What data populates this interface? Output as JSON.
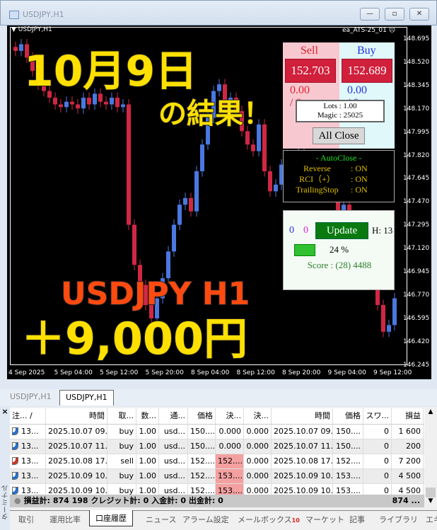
{
  "window": {
    "title": "USDJPY,H1",
    "minimize": "—",
    "restore": "▫",
    "close": "✕"
  },
  "chart": {
    "symbol_label": "USDJPY,H1",
    "ea_label": "ea_ATS-25_01",
    "ea_status_icon": "sad-face-icon",
    "y_ticks": [
      "148.695",
      "148.520",
      "148.345",
      "148.170",
      "147.995",
      "147.820",
      "147.645",
      "147.470",
      "147.295",
      "147.120",
      "146.945",
      "146.770",
      "146.595",
      "146.420",
      "146.245"
    ],
    "x_ticks": [
      "4 Sep 2025",
      "5 Sep 04:00",
      "5 Sep 12:00",
      "5 Sep 20:00",
      "8 Sep 04:00",
      "8 Sep 12:00",
      "8 Sep 20:00",
      "9 Sep 04:00",
      "9 Sep 12:00"
    ],
    "y_range": [
      146.245,
      148.695
    ],
    "colors": {
      "up": "#4a78e0",
      "down": "#d02844"
    },
    "closes": [
      148.6,
      148.65,
      148.55,
      148.45,
      148.35,
      148.3,
      148.25,
      148.2,
      148.18,
      148.22,
      148.2,
      148.17,
      148.25,
      148.2,
      148.28,
      148.22,
      148.2,
      148.25,
      148.18,
      148.2,
      147.3,
      147.0,
      146.85,
      146.7,
      146.6,
      146.75,
      146.9,
      147.1,
      147.3,
      147.45,
      147.5,
      147.4,
      147.7,
      147.9,
      148.1,
      148.3,
      148.35,
      148.2,
      148.25,
      148.15,
      148.0,
      147.9,
      147.85,
      148.05,
      147.7,
      147.55,
      147.6,
      147.75,
      147.8,
      147.72,
      147.85,
      147.8,
      147.7,
      147.75,
      147.65,
      147.7,
      147.55,
      147.4,
      147.45,
      147.3,
      147.2,
      147.1,
      147.0,
      146.9,
      146.7,
      146.5,
      146.55,
      146.75
    ]
  },
  "overlay": {
    "date": "10月9日",
    "result": "の結果！",
    "pair": "USDJPY  H1",
    "profit": "＋9,000円"
  },
  "panel": {
    "sell_label": "Sell",
    "buy_label": "Buy",
    "sell_price": "152.703",
    "buy_price": "152.689",
    "sell_pos": "0.00 / 0",
    "buy_pos": "0.00 / 0",
    "lots": "Lots   : 1.00",
    "magic": "Magic : 25025",
    "all_close": "All Close",
    "autoclose_title": "- AutoClose -",
    "autoclose": [
      {
        "name": "Reverse",
        "value": ": ON"
      },
      {
        "name": "RCI（+）",
        "value": ": ON"
      },
      {
        "name": "TrailingStop",
        "value": ": ON"
      }
    ],
    "count_blue": "0",
    "count_magenta": "0",
    "update": "Update",
    "h_label": "H: 13",
    "progress_pct": 24,
    "progress_text": "24 %",
    "score": "Score : (28) 4488"
  },
  "chart_tabs": [
    "USDJPY,H1",
    "USDJPY,H1"
  ],
  "terminal": {
    "side_label": "ターミナル",
    "close": "×",
    "columns": [
      "注...  /",
      "時間",
      "取...",
      "数...",
      "通...",
      "価格",
      "決...",
      "決...",
      "時間",
      "価格",
      "スワ...",
      "損益"
    ],
    "rows": [
      {
        "type": "buy",
        "cells": [
          "13...",
          "2025.10.07 09...",
          "buy",
          "1.00",
          "usd...",
          "150....",
          "0.000",
          "0.000",
          "2025.10.07 09...",
          "150....",
          "0",
          "1 600"
        ],
        "hl": false
      },
      {
        "type": "buy",
        "cells": [
          "13...",
          "2025.10.07 11...",
          "buy",
          "1.00",
          "usd...",
          "150....",
          "0.000",
          "0.000",
          "2025.10.07 11...",
          "150....",
          "0",
          "200"
        ],
        "hl": false
      },
      {
        "type": "sell",
        "cells": [
          "13...",
          "2025.10.08 17...",
          "sell",
          "1.00",
          "usd...",
          "152....",
          "152....",
          "0.000",
          "2025.10.08 17...",
          "152....",
          "0",
          "7 200"
        ],
        "hl": true
      },
      {
        "type": "buy",
        "cells": [
          "13...",
          "2025.10.09 10...",
          "buy",
          "1.00",
          "usd...",
          "152....",
          "153....",
          "0.000",
          "2025.10.09 10...",
          "153....",
          "0",
          "4 500"
        ],
        "hl": true
      },
      {
        "type": "buy",
        "cells": [
          "13...",
          "2025.10.09 10...",
          "buy",
          "1.00",
          "usd...",
          "152....",
          "153....",
          "0.000",
          "2025.10.09 10...",
          "153....",
          "0",
          "4 500"
        ],
        "hl": true
      }
    ],
    "summary": "損益計: 874 198  クレジット計: 0  入金計: 0  出金計: 0",
    "summary_total": "874 ...",
    "tabs": [
      "取引",
      "運用比率",
      "口座履歴",
      "ニュース",
      "アラーム設定",
      "メールボックス",
      "マーケット",
      "記事",
      "ライブラリ",
      "エキ"
    ],
    "active_tab": "口座履歴",
    "mailbox_badge": "10"
  }
}
